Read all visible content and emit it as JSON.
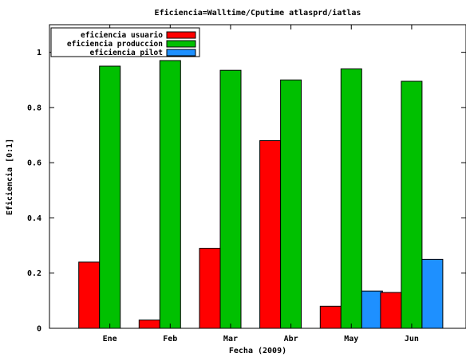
{
  "chart_data": {
    "type": "bar",
    "title": "Eficiencia=Walltime/Cputime atlasprd/iatlas",
    "xlabel": "Fecha (2009)",
    "ylabel": "Eficiencia [0:1]",
    "ylim": [
      0,
      1.1
    ],
    "yticks": [
      "0",
      "0.2",
      "0.4",
      "0.6",
      "0.8",
      "1"
    ],
    "ytick_values": [
      0,
      0.2,
      0.4,
      0.6,
      0.8,
      1.0
    ],
    "categories": [
      "Ene",
      "Feb",
      "Mar",
      "Abr",
      "May",
      "Jun"
    ],
    "legend_position": "top-left",
    "grid": false,
    "series": [
      {
        "name": "eficiencia usuario",
        "color": "#ff0000",
        "values": [
          0.24,
          0.03,
          0.29,
          0.68,
          0.08,
          0.13
        ]
      },
      {
        "name": "eficiencia produccion",
        "color": "#00c000",
        "values": [
          0.95,
          0.97,
          0.935,
          0.9,
          0.94,
          0.895
        ]
      },
      {
        "name": "eficiencia pilot",
        "color": "#1e90ff",
        "values": [
          null,
          null,
          null,
          null,
          0.135,
          0.25
        ]
      }
    ]
  }
}
